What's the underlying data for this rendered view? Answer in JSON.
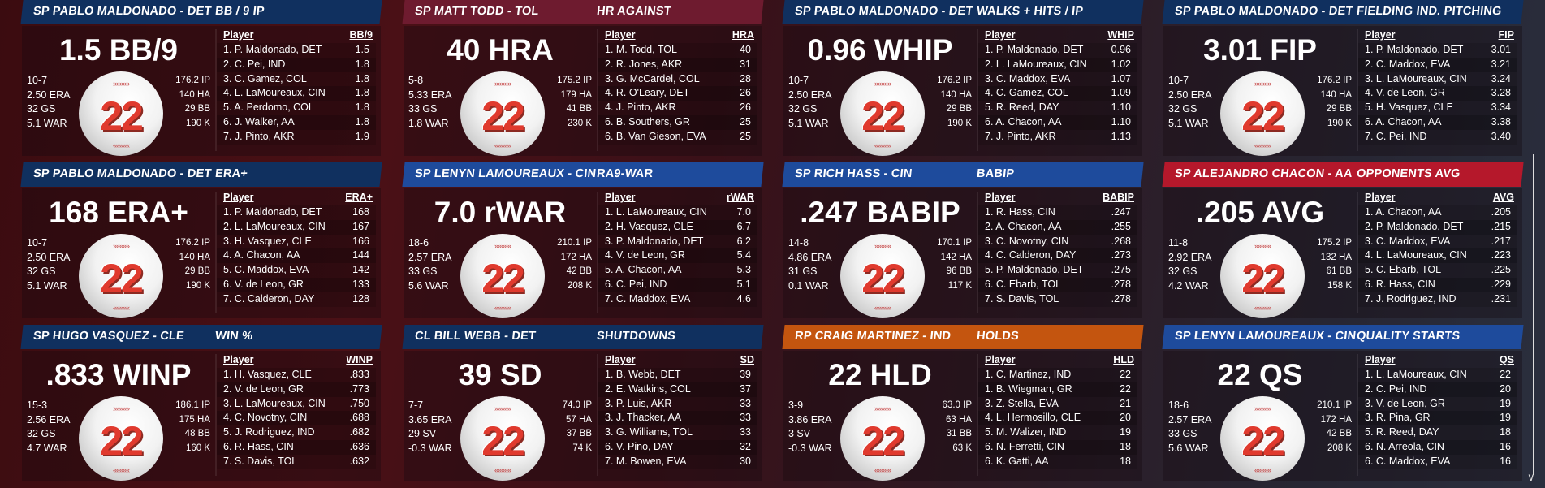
{
  "colors": {
    "navy": "#10305f",
    "maroon": "#6e1b2f",
    "blue": "#1e4b9c",
    "red": "#b5182b",
    "orange": "#c4550f",
    "ball_number": "#e03a2e"
  },
  "panels": [
    {
      "color": "navy",
      "player": "SP PABLO MALDONADO - DET",
      "stat": "BB / 9 IP",
      "big": "1.5 BB/9",
      "left": [
        "10-7",
        "2.50 ERA",
        "32 GS",
        "5.1 WAR"
      ],
      "right": [
        "176.2 IP",
        "140 HA",
        "29 BB",
        "190 K"
      ],
      "number": "22",
      "col": "BB/9",
      "rows": [
        [
          "1. P. Maldonado, DET",
          "1.5"
        ],
        [
          "2. C. Pei, IND",
          "1.8"
        ],
        [
          "3. C. Gamez, COL",
          "1.8"
        ],
        [
          "4. L. LaMoureaux, CIN",
          "1.8"
        ],
        [
          "5. A. Perdomo, COL",
          "1.8"
        ],
        [
          "6. J. Walker, AA",
          "1.8"
        ],
        [
          "7. J. Pinto, AKR",
          "1.9"
        ]
      ]
    },
    {
      "color": "maroon",
      "player": "SP MATT TODD - TOL",
      "stat": "HR AGAINST",
      "big": "40 HRA",
      "left": [
        "5-8",
        "5.33 ERA",
        "33 GS",
        "1.8 WAR"
      ],
      "right": [
        "175.2 IP",
        "179 HA",
        "41 BB",
        "230 K"
      ],
      "number": "22",
      "col": "HRA",
      "rows": [
        [
          "1. M. Todd, TOL",
          "40"
        ],
        [
          "2. R. Jones, AKR",
          "31"
        ],
        [
          "3. G. McCardel, COL",
          "28"
        ],
        [
          "4. R. O'Leary, DET",
          "26"
        ],
        [
          "4. J. Pinto, AKR",
          "26"
        ],
        [
          "6. B. Southers, GR",
          "25"
        ],
        [
          "6. B. Van Gieson, EVA",
          "25"
        ]
      ]
    },
    {
      "color": "navy",
      "player": "SP PABLO MALDONADO - DET",
      "stat": "WALKS + HITS / IP",
      "big": "0.96 WHIP",
      "left": [
        "10-7",
        "2.50 ERA",
        "32 GS",
        "5.1 WAR"
      ],
      "right": [
        "176.2 IP",
        "140 HA",
        "29 BB",
        "190 K"
      ],
      "number": "22",
      "col": "WHIP",
      "rows": [
        [
          "1. P. Maldonado, DET",
          "0.96"
        ],
        [
          "2. L. LaMoureaux, CIN",
          "1.02"
        ],
        [
          "3. C. Maddox, EVA",
          "1.07"
        ],
        [
          "4. C. Gamez, COL",
          "1.09"
        ],
        [
          "5. R. Reed, DAY",
          "1.10"
        ],
        [
          "6. A. Chacon, AA",
          "1.10"
        ],
        [
          "7. J. Pinto, AKR",
          "1.13"
        ]
      ]
    },
    {
      "color": "navy",
      "player": "SP PABLO MALDONADO - DET",
      "stat": "FIELDING IND. PITCHING",
      "big": "3.01 FIP",
      "left": [
        "10-7",
        "2.50 ERA",
        "32 GS",
        "5.1 WAR"
      ],
      "right": [
        "176.2 IP",
        "140 HA",
        "29 BB",
        "190 K"
      ],
      "number": "22",
      "col": "FIP",
      "rows": [
        [
          "1. P. Maldonado, DET",
          "3.01"
        ],
        [
          "2. C. Maddox, EVA",
          "3.21"
        ],
        [
          "3. L. LaMoureaux, CIN",
          "3.24"
        ],
        [
          "4. V. de Leon, GR",
          "3.28"
        ],
        [
          "5. H. Vasquez, CLE",
          "3.34"
        ],
        [
          "6. A. Chacon, AA",
          "3.38"
        ],
        [
          "7. C. Pei, IND",
          "3.40"
        ]
      ]
    },
    {
      "color": "navy",
      "player": "SP PABLO MALDONADO - DET",
      "stat": "ERA+",
      "big": "168 ERA+",
      "left": [
        "10-7",
        "2.50 ERA",
        "32 GS",
        "5.1 WAR"
      ],
      "right": [
        "176.2 IP",
        "140 HA",
        "29 BB",
        "190 K"
      ],
      "number": "22",
      "col": "ERA+",
      "rows": [
        [
          "1. P. Maldonado, DET",
          "168"
        ],
        [
          "2. L. LaMoureaux, CIN",
          "167"
        ],
        [
          "3. H. Vasquez, CLE",
          "166"
        ],
        [
          "4. A. Chacon, AA",
          "144"
        ],
        [
          "5. C. Maddox, EVA",
          "142"
        ],
        [
          "6. V. de Leon, GR",
          "133"
        ],
        [
          "7. C. Calderon, DAY",
          "128"
        ]
      ]
    },
    {
      "color": "blue",
      "player": "SP LENYN LAMOUREAUX - CIN",
      "stat": "RA9-WAR",
      "big": "7.0 rWAR",
      "left": [
        "18-6",
        "2.57 ERA",
        "33 GS",
        "5.6 WAR"
      ],
      "right": [
        "210.1 IP",
        "172 HA",
        "42 BB",
        "208 K"
      ],
      "number": "22",
      "col": "rWAR",
      "rows": [
        [
          "1. L. LaMoureaux, CIN",
          "7.0"
        ],
        [
          "2. H. Vasquez, CLE",
          "6.7"
        ],
        [
          "3. P. Maldonado, DET",
          "6.2"
        ],
        [
          "4. V. de Leon, GR",
          "5.4"
        ],
        [
          "5. A. Chacon, AA",
          "5.3"
        ],
        [
          "6. C. Pei, IND",
          "5.1"
        ],
        [
          "7. C. Maddox, EVA",
          "4.6"
        ]
      ]
    },
    {
      "color": "blue",
      "player": "SP RICH HASS - CIN",
      "stat": "BABIP",
      "big": ".247 BABIP",
      "left": [
        "14-8",
        "4.86 ERA",
        "31 GS",
        "0.1 WAR"
      ],
      "right": [
        "170.1 IP",
        "142 HA",
        "96 BB",
        "117 K"
      ],
      "number": "22",
      "col": "BABIP",
      "rows": [
        [
          "1. R. Hass, CIN",
          ".247"
        ],
        [
          "2. A. Chacon, AA",
          ".255"
        ],
        [
          "3. C. Novotny, CIN",
          ".268"
        ],
        [
          "4. C. Calderon, DAY",
          ".273"
        ],
        [
          "5. P. Maldonado, DET",
          ".275"
        ],
        [
          "6. C. Ebarb, TOL",
          ".278"
        ],
        [
          "7. S. Davis, TOL",
          ".278"
        ]
      ]
    },
    {
      "color": "red",
      "player": "SP ALEJANDRO CHACON - AA",
      "stat": "OPPONENTS AVG",
      "big": ".205 AVG",
      "left": [
        "11-8",
        "2.92 ERA",
        "32 GS",
        "4.2 WAR"
      ],
      "right": [
        "175.2 IP",
        "132 HA",
        "61 BB",
        "158 K"
      ],
      "number": "22",
      "col": "AVG",
      "rows": [
        [
          "1. A. Chacon, AA",
          ".205"
        ],
        [
          "2. P. Maldonado, DET",
          ".215"
        ],
        [
          "3. C. Maddox, EVA",
          ".217"
        ],
        [
          "4. L. LaMoureaux, CIN",
          ".223"
        ],
        [
          "5. C. Ebarb, TOL",
          ".225"
        ],
        [
          "6. R. Hass, CIN",
          ".229"
        ],
        [
          "7. J. Rodriguez, IND",
          ".231"
        ]
      ]
    },
    {
      "color": "navy",
      "player": "SP HUGO VASQUEZ - CLE",
      "stat": "WIN %",
      "big": ".833 WINP",
      "left": [
        "15-3",
        "2.56 ERA",
        "32 GS",
        "4.7 WAR"
      ],
      "right": [
        "186.1 IP",
        "175 HA",
        "48 BB",
        "160 K"
      ],
      "number": "22",
      "col": "WINP",
      "rows": [
        [
          "1. H. Vasquez, CLE",
          ".833"
        ],
        [
          "2. V. de Leon, GR",
          ".773"
        ],
        [
          "3. L. LaMoureaux, CIN",
          ".750"
        ],
        [
          "4. C. Novotny, CIN",
          ".688"
        ],
        [
          "5. J. Rodriguez, IND",
          ".682"
        ],
        [
          "6. R. Hass, CIN",
          ".636"
        ],
        [
          "7. S. Davis, TOL",
          ".632"
        ]
      ]
    },
    {
      "color": "navy",
      "player": "CL BILL WEBB - DET",
      "stat": "SHUTDOWNS",
      "big": "39 SD",
      "left": [
        "7-7",
        "3.65 ERA",
        "29 SV",
        "-0.3 WAR"
      ],
      "right": [
        "74.0 IP",
        "57 HA",
        "37 BB",
        "74 K"
      ],
      "number": "22",
      "col": "SD",
      "rows": [
        [
          "1. B. Webb, DET",
          "39"
        ],
        [
          "2. E. Watkins, COL",
          "37"
        ],
        [
          "3. P. Luis, AKR",
          "33"
        ],
        [
          "3. J. Thacker, AA",
          "33"
        ],
        [
          "3. G. Williams, TOL",
          "33"
        ],
        [
          "6. V. Pino, DAY",
          "32"
        ],
        [
          "7. M. Bowen, EVA",
          "30"
        ]
      ]
    },
    {
      "color": "orange",
      "player": "RP CRAIG MARTINEZ - IND",
      "stat": "HOLDS",
      "big": "22 HLD",
      "left": [
        "3-9",
        "3.86 ERA",
        "3 SV",
        "-0.3 WAR"
      ],
      "right": [
        "63.0 IP",
        "63 HA",
        "31 BB",
        "63 K"
      ],
      "number": "22",
      "col": "HLD",
      "rows": [
        [
          "1. C. Martinez, IND",
          "22"
        ],
        [
          "1. B. Wiegman, GR",
          "22"
        ],
        [
          "3. Z. Stella, EVA",
          "21"
        ],
        [
          "4. L. Hermosillo, CLE",
          "20"
        ],
        [
          "5. M. Walizer, IND",
          "19"
        ],
        [
          "6. N. Ferretti, CIN",
          "18"
        ],
        [
          "6. K. Gatti, AA",
          "18"
        ]
      ]
    },
    {
      "color": "blue",
      "player": "SP LENYN LAMOUREAUX - CIN",
      "stat": "QUALITY STARTS",
      "big": "22 QS",
      "left": [
        "18-6",
        "2.57 ERA",
        "33 GS",
        "5.6 WAR"
      ],
      "right": [
        "210.1 IP",
        "172 HA",
        "42 BB",
        "208 K"
      ],
      "number": "22",
      "col": "QS",
      "rows": [
        [
          "1. L. LaMoureaux, CIN",
          "22"
        ],
        [
          "2. C. Pei, IND",
          "20"
        ],
        [
          "3. V. de Leon, GR",
          "19"
        ],
        [
          "3. R. Pina, GR",
          "19"
        ],
        [
          "5. R. Reed, DAY",
          "18"
        ],
        [
          "6. N. Arreola, CIN",
          "16"
        ],
        [
          "6. C. Maddox, EVA",
          "16"
        ]
      ]
    }
  ],
  "table_player_header": "Player",
  "scroll_arrow_icon": "chevron-down-icon",
  "scroll_arrow_glyph": "∨"
}
